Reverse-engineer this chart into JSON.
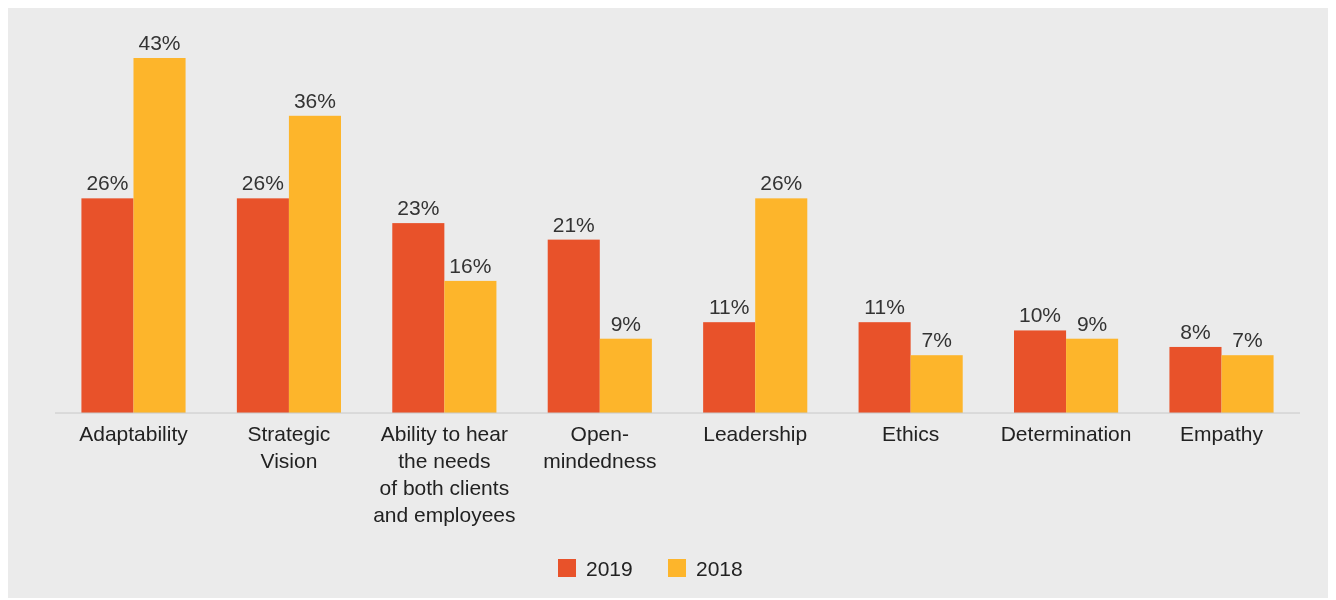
{
  "chart_data": {
    "type": "bar",
    "categories": [
      "Adaptability",
      "Strategic\nVision",
      "Ability to hear\nthe needs\nof both clients\nand employees",
      "Open-\nmindedness",
      "Leadership",
      "Ethics",
      "Determination",
      "Empathy"
    ],
    "series": [
      {
        "name": "2019",
        "color": "#e8522a",
        "values": [
          26,
          26,
          23,
          21,
          11,
          11,
          10,
          8
        ],
        "value_labels": [
          "26%",
          "26%",
          "23%",
          "21%",
          "11%",
          "11%",
          "10%",
          "8%"
        ]
      },
      {
        "name": "2018",
        "color": "#fdb52b",
        "values": [
          43,
          36,
          16,
          9,
          26,
          7,
          9,
          7
        ],
        "value_labels": [
          "43%",
          "36%",
          "16%",
          "9%",
          "26%",
          "7%",
          "9%",
          "7%"
        ]
      }
    ],
    "legend": "bottom"
  }
}
